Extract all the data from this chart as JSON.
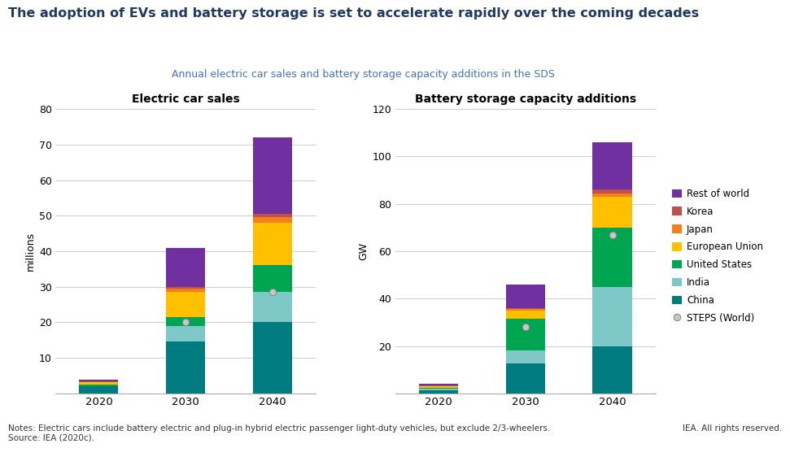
{
  "title": "The adoption of EVs and battery storage is set to accelerate rapidly over the coming decades",
  "subtitle": "Annual electric car sales and battery storage capacity additions in the SDS",
  "left_chart_title": "Electric car sales",
  "right_chart_title": "Battery storage capacity additions",
  "left_ylabel": "millions",
  "right_ylabel": "GW",
  "notes": "Notes: Electric cars include battery electric and plug-in hybrid electric passenger light-duty vehicles, but exclude 2/3-wheelers.\nSource: IEA (2020c).",
  "credit": "IEA. All rights reserved.",
  "years": [
    2020,
    2030,
    2040
  ],
  "ev_data": {
    "China": [
      2.0,
      14.5,
      20.0
    ],
    "India": [
      0.1,
      4.5,
      8.5
    ],
    "United States": [
      0.3,
      2.5,
      7.5
    ],
    "European Union": [
      0.7,
      7.0,
      12.0
    ],
    "Japan": [
      0.1,
      1.0,
      1.5
    ],
    "Korea": [
      0.1,
      0.5,
      1.0
    ],
    "Rest of world": [
      0.5,
      11.0,
      21.5
    ]
  },
  "ev_steps": [
    null,
    20.0,
    28.5
  ],
  "bat_data": {
    "China": [
      1.5,
      12.5,
      20.0
    ],
    "India": [
      0.5,
      5.5,
      25.0
    ],
    "United States": [
      0.5,
      13.5,
      25.0
    ],
    "European Union": [
      0.5,
      3.5,
      13.0
    ],
    "Japan": [
      0.2,
      0.5,
      1.5
    ],
    "Korea": [
      0.1,
      0.5,
      1.5
    ],
    "Rest of world": [
      0.7,
      10.0,
      20.0
    ]
  },
  "bat_steps": [
    null,
    28.0,
    67.0
  ],
  "colors": {
    "China": "#007B7F",
    "India": "#7EC8C8",
    "United States": "#00A551",
    "European Union": "#FFC000",
    "Japan": "#F4801A",
    "Korea": "#C0504D",
    "Rest of world": "#7030A0"
  },
  "title_color": "#1F3864",
  "subtitle_color": "#4472C4",
  "background_color": "#FFFFFF",
  "grid_color": "#CCCCCC",
  "spine_color": "#AAAAAA"
}
